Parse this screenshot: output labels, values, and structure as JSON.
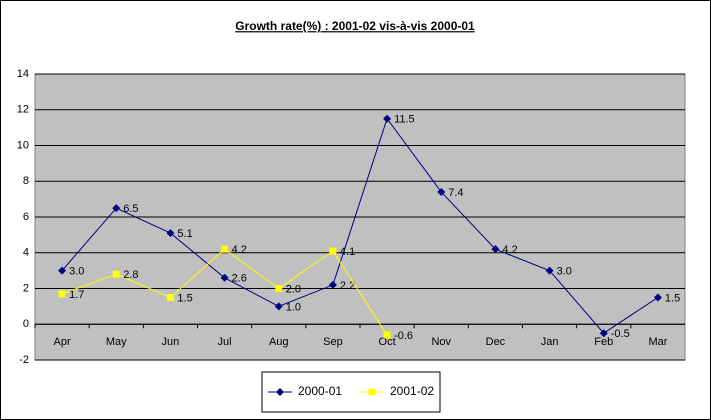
{
  "chart_data": {
    "type": "line",
    "title": "Growth rate(%) : 2001-02 vis-à-vis 2000-01",
    "categories": [
      "Apr",
      "May",
      "Jun",
      "Jul",
      "Aug",
      "Sep",
      "Oct",
      "Nov",
      "Dec",
      "Jan",
      "Feb",
      "Mar"
    ],
    "series": [
      {
        "name": "2000-01",
        "color": "#000080",
        "marker": "diamond",
        "values": [
          3.0,
          6.5,
          5.1,
          2.6,
          1.0,
          2.2,
          11.5,
          7.4,
          4.2,
          3.0,
          -0.5,
          1.5
        ],
        "value_labels": [
          "3.0",
          "6.5",
          "5.1",
          "2.6",
          "1.0",
          "2.2",
          "11.5",
          "7.4",
          "4.2",
          "3.0",
          "-0.5",
          "1.5"
        ]
      },
      {
        "name": "2001-02",
        "color": "#ffff00",
        "marker": "square",
        "values": [
          1.7,
          2.8,
          1.5,
          4.2,
          2.0,
          4.1,
          -0.6,
          null,
          null,
          null,
          null,
          null
        ],
        "value_labels": [
          "1.7",
          "2.8",
          "1.5",
          "4.2",
          "2.0",
          "4.1",
          "-0.6",
          null,
          null,
          null,
          null,
          null
        ]
      }
    ],
    "ylim": [
      -2,
      14
    ],
    "yticks": [
      -2,
      0,
      2,
      4,
      6,
      8,
      10,
      12,
      14
    ],
    "grid": true,
    "legend": "bottom"
  }
}
